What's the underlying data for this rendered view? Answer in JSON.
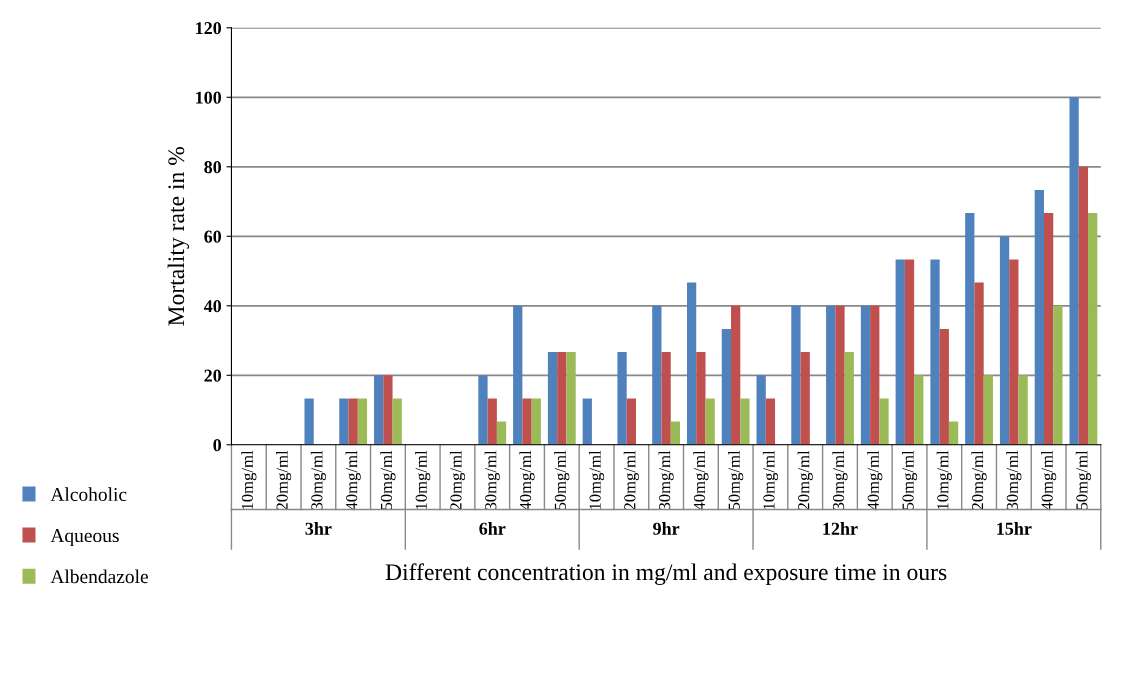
{
  "chart_data": {
    "type": "bar",
    "xlabel": "Different concentration in mg/ml and exposure time in ours",
    "ylabel": "Mortality rate in %",
    "categories": [
      "10mg/ml",
      "20mg/ml",
      "30mg/ml",
      "40mg/ml",
      "50mg/ml",
      "10mg/ml",
      "20mg/ml",
      "30mg/ml",
      "40mg/ml",
      "50mg/ml",
      "10mg/ml",
      "20mg/ml",
      "30mg/ml",
      "40mg/ml",
      "50mg/ml",
      "10mg/ml",
      "20mg/ml",
      "30mg/ml",
      "40mg/ml",
      "50mg/ml",
      "10mg/ml",
      "20mg/ml",
      "30mg/ml",
      "40mg/ml",
      "50mg/ml"
    ],
    "series": [
      {
        "name": "Alcoholic",
        "color": "#4f81bd",
        "values": [
          0,
          0,
          13.3,
          13.3,
          20,
          0,
          0,
          20,
          40,
          26.7,
          13.3,
          26.7,
          40,
          46.7,
          33.3,
          20,
          40,
          40,
          40,
          53.3,
          53.3,
          66.7,
          60,
          73.3,
          100
        ]
      },
      {
        "name": "Aqueous",
        "color": "#c0504d",
        "values": [
          0,
          0,
          0,
          13.3,
          20,
          0,
          0,
          13.3,
          13.3,
          26.7,
          0,
          13.3,
          26.7,
          26.7,
          40,
          13.3,
          26.7,
          40,
          40,
          53.3,
          33.3,
          46.7,
          53.3,
          66.7,
          80
        ]
      },
      {
        "name": "Albendazole",
        "color": "#9bbb59",
        "values": [
          0,
          0,
          0,
          13.3,
          13.3,
          0,
          0,
          6.7,
          13.3,
          26.7,
          0,
          0,
          6.7,
          13.3,
          13.3,
          0,
          0,
          26.7,
          13.3,
          20,
          6.7,
          20,
          20,
          40,
          66.7
        ]
      }
    ],
    "annotations": [
      "3hr",
      "6hr",
      "9hr",
      "12hr",
      "15hr"
    ],
    "ylim": [
      0,
      120
    ],
    "yticks": [
      0,
      20,
      40,
      60,
      80,
      100,
      120
    ],
    "grid": "y",
    "legend": "bottom left"
  }
}
